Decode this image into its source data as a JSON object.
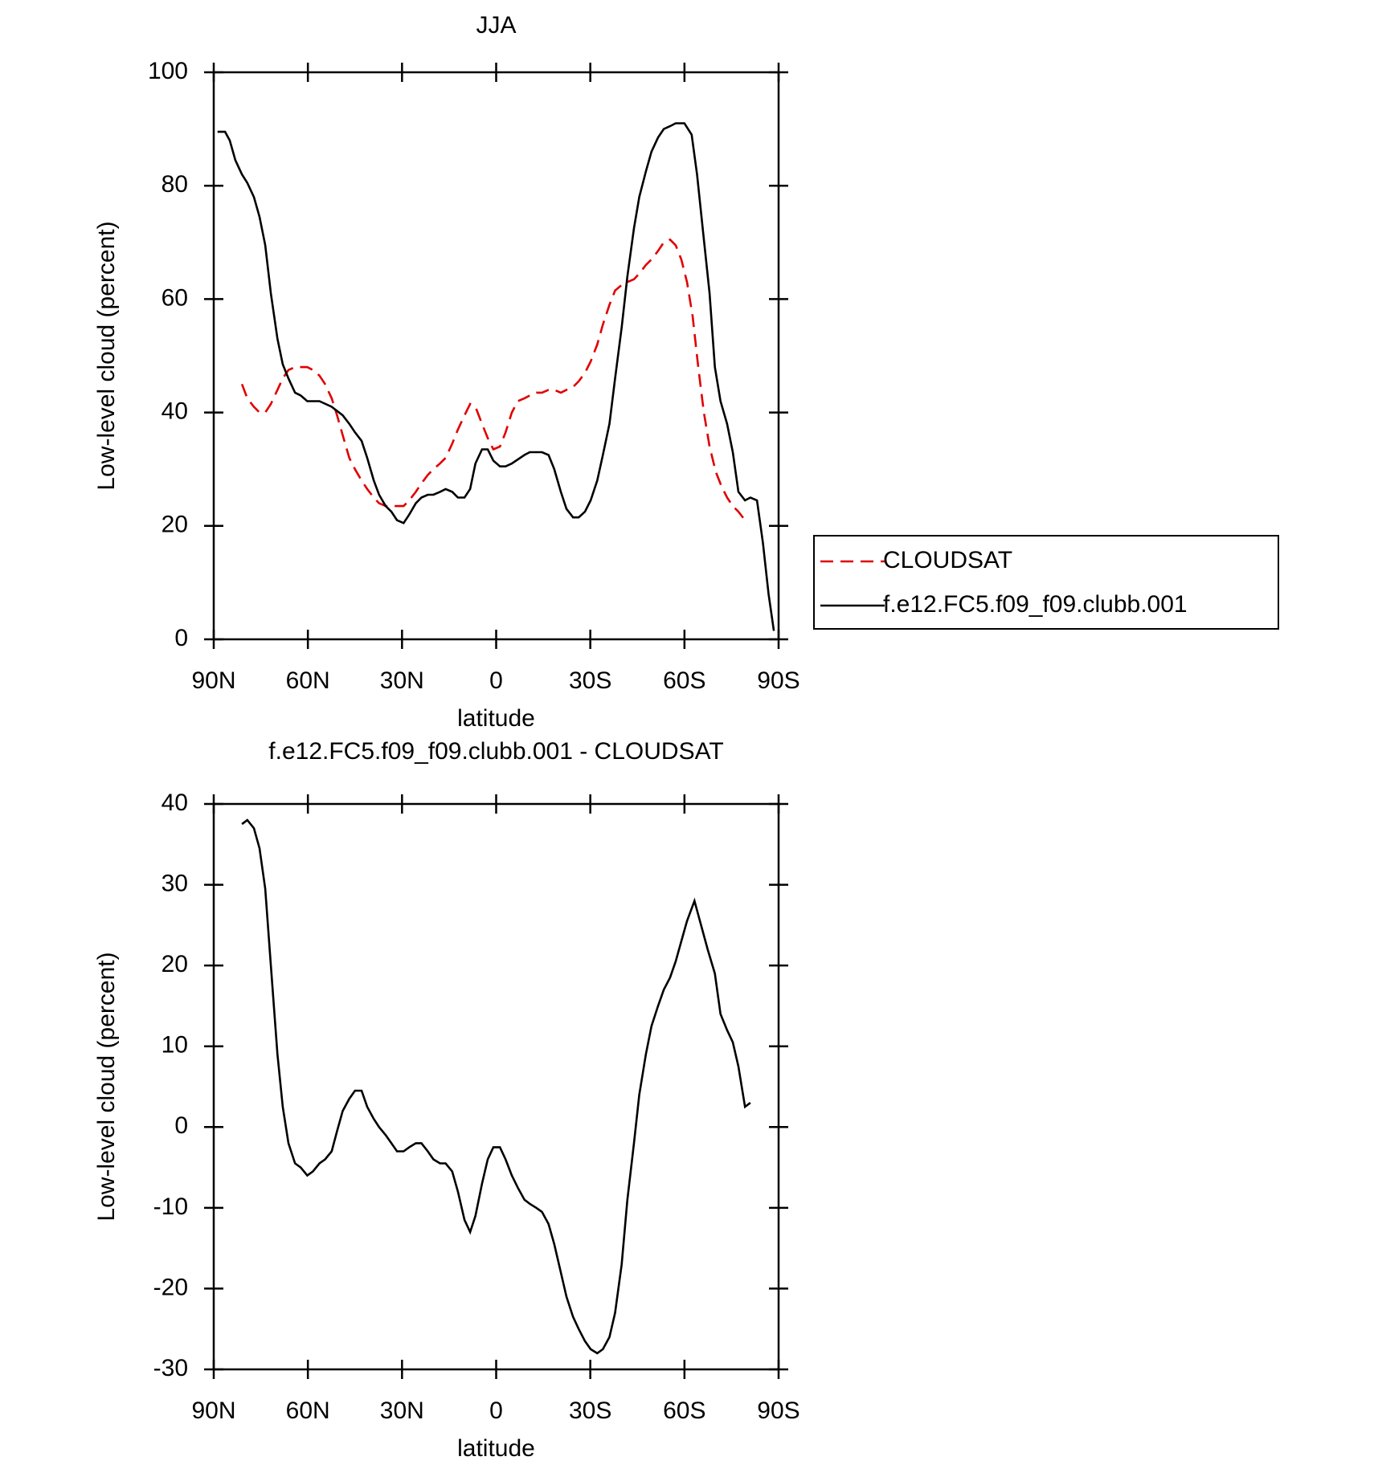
{
  "chart_data": [
    {
      "type": "line",
      "title": "JJA",
      "xlabel": "latitude",
      "ylabel": "Low-level cloud (percent)",
      "xlim": [
        90,
        -90
      ],
      "xticks": [
        {
          "value": 90,
          "label": "90N"
        },
        {
          "value": 60,
          "label": "60N"
        },
        {
          "value": 30,
          "label": "30N"
        },
        0,
        {
          "value": -30,
          "label": "30S"
        },
        {
          "value": -60,
          "label": "60S"
        },
        {
          "value": -90,
          "label": "90S"
        }
      ],
      "ylim": [
        0,
        100
      ],
      "yticks": [
        0,
        20,
        40,
        60,
        80,
        100
      ],
      "legend": "right",
      "series": [
        {
          "name": "CLOUDSAT",
          "color": "#e00000",
          "dashed": true,
          "x": [
            81,
            79.3,
            77.2,
            75.4,
            73.6,
            71.8,
            69.7,
            68,
            66.2,
            64.1,
            62.3,
            60.2,
            58.4,
            56.3,
            54.5,
            52.4,
            50.7,
            48.9,
            46.8,
            45,
            42.9,
            41.1,
            39,
            37.3,
            35.2,
            33.4,
            31.6,
            29.5,
            27.7,
            25.6,
            23.8,
            21.8,
            20,
            17.9,
            16.1,
            14,
            12.2,
            10.1,
            8.3,
            6.6,
            4.5,
            2.7,
            0.9,
            -1.2,
            -3,
            -5,
            -6.9,
            -9,
            -10.7,
            -12.8,
            -14.6,
            -16.7,
            -18.5,
            -20.6,
            -22.4,
            -24.5,
            -26.3,
            -28.3,
            -30.1,
            -32.2,
            -34,
            -36.1,
            -37.9,
            -40,
            -41.8,
            -43.9,
            -45.6,
            -47.7,
            -49.5,
            -51.6,
            -53.4,
            -55.4,
            -57.2,
            -59,
            -60.8,
            -62.6,
            -64.4,
            -66.2,
            -68,
            -70,
            -71.8,
            -73.6,
            -75.4,
            -77.2,
            -79.3
          ],
          "values": [
            45,
            42.5,
            41,
            40,
            40,
            41.5,
            44,
            46,
            47.5,
            48,
            48,
            48,
            47.5,
            46.5,
            45,
            42.5,
            39.5,
            36,
            32,
            30,
            28,
            26.5,
            25,
            24,
            23.5,
            23.5,
            23.5,
            23.5,
            24.5,
            26,
            27.5,
            29,
            30,
            31,
            32,
            34.5,
            37,
            39.5,
            41.5,
            41,
            38,
            35.5,
            33.5,
            34,
            36.5,
            40,
            42,
            42.5,
            43,
            43.5,
            43.5,
            44,
            44,
            43.5,
            44,
            44.5,
            45.5,
            47,
            49,
            52,
            55.5,
            59,
            61.5,
            62.5,
            63,
            63.5,
            64.5,
            66,
            67,
            68.5,
            70,
            70.5,
            69.5,
            67,
            63,
            57,
            48,
            40,
            34,
            29.5,
            27,
            25,
            23.5,
            22.5,
            21
          ]
        },
        {
          "name": "f.e12.FC5.f09_f09.clubb.001",
          "color": "#000000",
          "dashed": false,
          "x": [
            88.8,
            86.4,
            84.9,
            83.1,
            81,
            79.3,
            77.2,
            75.4,
            73.6,
            71.8,
            69.7,
            68,
            66.2,
            64.1,
            62.3,
            60.2,
            56.3,
            52.4,
            48.9,
            46.8,
            45,
            42.9,
            41.1,
            39,
            37.3,
            35.2,
            33.4,
            31.6,
            29.5,
            27.7,
            25.6,
            23.8,
            21.8,
            20,
            17.9,
            16.1,
            14,
            12.2,
            10.1,
            8.3,
            6.6,
            4.5,
            2.7,
            0.9,
            -1.2,
            -3,
            -5,
            -9,
            -10.7,
            -14.6,
            -16.7,
            -18.5,
            -20.6,
            -22.4,
            -24.5,
            -26.3,
            -28.3,
            -30.1,
            -32.2,
            -34,
            -36.1,
            -37.9,
            -40,
            -41.8,
            -43.9,
            -45.6,
            -47.7,
            -49.5,
            -51.6,
            -53.4,
            -55.4,
            -57.2,
            -60,
            -62.3,
            -64,
            -65.9,
            -68,
            -69.7,
            -71.5,
            -73.6,
            -75.4,
            -77.2,
            -79.3,
            -81,
            -83.1,
            -85,
            -86.8,
            -88.5
          ],
          "values": [
            89.5,
            89.5,
            88,
            84.5,
            82,
            80.5,
            78,
            74.5,
            69.5,
            61,
            53,
            48.5,
            46,
            43.5,
            43,
            42,
            42,
            41,
            39.5,
            38,
            36.5,
            35,
            32,
            28,
            25.5,
            23.5,
            22.5,
            21,
            20.5,
            22,
            24,
            25,
            25.5,
            25.5,
            26,
            26.5,
            26,
            25,
            25,
            26.5,
            31,
            33.5,
            33.5,
            31.5,
            30.5,
            30.5,
            31,
            32.5,
            33,
            33,
            32.5,
            30,
            26,
            23,
            21.5,
            21.5,
            22.5,
            24.5,
            28,
            32.5,
            38,
            46,
            55,
            64,
            72.5,
            78,
            82.5,
            86,
            88.5,
            90,
            90.5,
            91,
            91,
            89,
            82,
            72,
            61,
            48,
            42,
            38,
            33,
            26,
            24.5,
            25,
            24.5,
            17,
            8,
            1.5
          ]
        }
      ]
    },
    {
      "type": "line",
      "title": "f.e12.FC5.f09_f09.clubb.001 - CLOUDSAT",
      "xlabel": "latitude",
      "ylabel": "Low-level cloud (percent)",
      "xlim": [
        90,
        -90
      ],
      "xticks": [
        {
          "value": 90,
          "label": "90N"
        },
        {
          "value": 60,
          "label": "60N"
        },
        {
          "value": 30,
          "label": "30N"
        },
        0,
        {
          "value": -30,
          "label": "30S"
        },
        {
          "value": -60,
          "label": "60S"
        },
        {
          "value": -90,
          "label": "90S"
        }
      ],
      "ylim": [
        -30,
        40
      ],
      "yticks": [
        -30,
        -20,
        -10,
        0,
        10,
        20,
        30,
        40
      ],
      "series": [
        {
          "color": "#000000",
          "dashed": false,
          "x": [
            81,
            79.3,
            77.2,
            75.4,
            73.6,
            71.8,
            69.7,
            68,
            66.2,
            64.1,
            62.3,
            60.2,
            58.4,
            56.3,
            54.5,
            52.4,
            50.7,
            48.9,
            46.8,
            45,
            42.9,
            41.1,
            39,
            37.3,
            35.2,
            33.4,
            31.6,
            29.5,
            27.7,
            25.6,
            23.8,
            21.8,
            20,
            17.9,
            16.1,
            14,
            12.2,
            10.1,
            8.3,
            6.6,
            4.5,
            2.7,
            0.9,
            -1.2,
            -3,
            -5,
            -6.9,
            -9,
            -10.7,
            -12.8,
            -14.6,
            -16.7,
            -18.5,
            -20.6,
            -22.4,
            -24.5,
            -26.3,
            -28.3,
            -30.1,
            -32.2,
            -34,
            -36.1,
            -37.9,
            -40,
            -41.8,
            -43.9,
            -45.6,
            -47.7,
            -49.5,
            -51.6,
            -53.4,
            -55.4,
            -57.2,
            -59,
            -60.8,
            -63.2,
            -65.3,
            -67.4,
            -69.7,
            -71.5,
            -73.6,
            -75.4,
            -77.2,
            -79.3,
            -81
          ],
          "values": [
            37.5,
            38,
            37,
            34.5,
            29.5,
            20,
            9,
            2.5,
            -2,
            -4.5,
            -5,
            -6,
            -5.5,
            -4.5,
            -4,
            -3,
            -0.5,
            2,
            3.5,
            4.5,
            4.5,
            2.5,
            1,
            0,
            -1,
            -2,
            -3,
            -3,
            -2.5,
            -2,
            -2,
            -3,
            -4,
            -4.5,
            -4.5,
            -5.5,
            -8,
            -11.5,
            -13,
            -11,
            -7,
            -4,
            -2.5,
            -2.5,
            -4,
            -6,
            -7.5,
            -9,
            -9.5,
            -10,
            -10.5,
            -12,
            -14.5,
            -18,
            -21,
            -23.5,
            -25,
            -26.5,
            -27.5,
            -28,
            -27.5,
            -26,
            -23,
            -17,
            -9,
            -2,
            4,
            9,
            12.5,
            15,
            17,
            18.5,
            20.5,
            23,
            25.5,
            28,
            25,
            22,
            19,
            14,
            12,
            10.5,
            7.5,
            2.5,
            3
          ]
        }
      ]
    }
  ]
}
